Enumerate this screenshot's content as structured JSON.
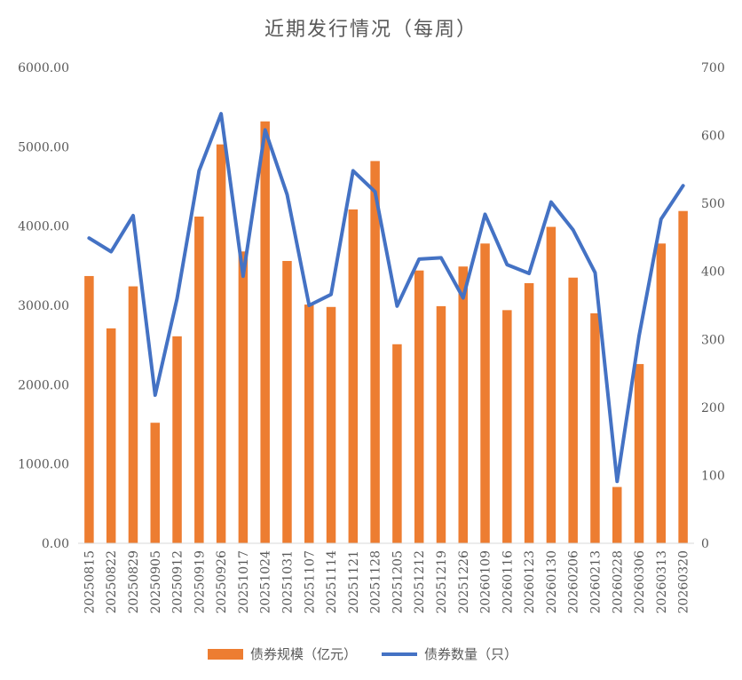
{
  "chart_data": {
    "type": "bar",
    "title": "近期发行情况（每周）",
    "categories": [
      "20250815",
      "20250822",
      "20250829",
      "20250905",
      "20250912",
      "20250919",
      "20250926",
      "20251017",
      "20251024",
      "20251031",
      "20251107",
      "20251114",
      "20251121",
      "20251128",
      "20251205",
      "20251212",
      "20251219",
      "20251226",
      "20260109",
      "20260116",
      "20260123",
      "20260130",
      "20260206",
      "20260213",
      "20260228",
      "20260306",
      "20260313",
      "20260320"
    ],
    "series": [
      {
        "name": "债券规模（亿元）",
        "type": "bar",
        "axis": "left",
        "color": "#ED7D31",
        "values": [
          3370,
          2710,
          3240,
          1520,
          2610,
          4120,
          5030,
          3680,
          5320,
          3560,
          3010,
          2980,
          4210,
          4820,
          2510,
          3440,
          2990,
          3490,
          3780,
          2940,
          3280,
          3990,
          3350,
          2900,
          710,
          2260,
          3780,
          4190
        ]
      },
      {
        "name": "债券数量（只）",
        "type": "line",
        "axis": "right",
        "color": "#4472C4",
        "values": [
          449,
          429,
          482,
          218,
          360,
          548,
          632,
          393,
          608,
          513,
          350,
          366,
          548,
          517,
          349,
          418,
          420,
          361,
          484,
          410,
          397,
          502,
          461,
          398,
          91,
          305,
          477,
          526
        ]
      }
    ],
    "y_left": {
      "min": 0,
      "max": 6000,
      "ticks": [
        "0.00",
        "1000.00",
        "2000.00",
        "3000.00",
        "4000.00",
        "5000.00",
        "6000.00"
      ]
    },
    "y_right": {
      "min": 0,
      "max": 700,
      "ticks": [
        "0",
        "100",
        "200",
        "300",
        "400",
        "500",
        "600",
        "700"
      ]
    },
    "grid": false,
    "legend_position": "bottom"
  }
}
